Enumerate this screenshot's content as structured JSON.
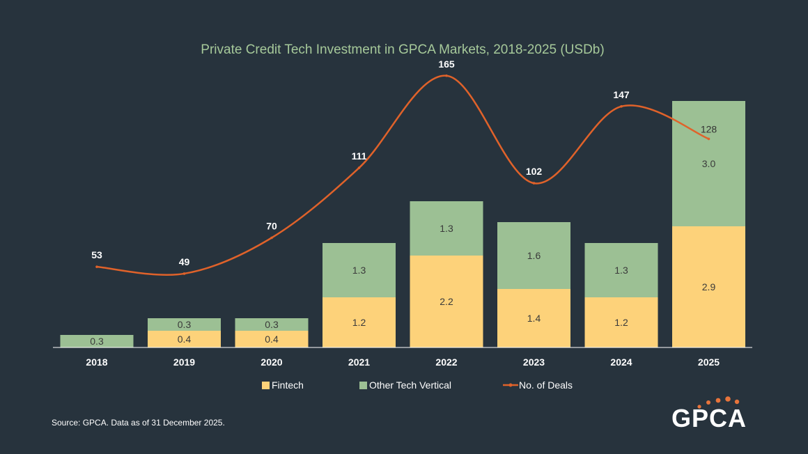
{
  "source_note": "Source: GPCA. Data as of 31 December 2025.",
  "logo": {
    "text": "GPCA",
    "dot_color": "#e8743b"
  },
  "colors": {
    "background": "#27333d",
    "fintech": "#fdd27a",
    "other": "#9cc094",
    "deals": "#e0622a",
    "title": "#a6c99a"
  },
  "chart_data": {
    "type": "bar",
    "stacked": true,
    "title": "Private Credit Tech Investment in GPCA Markets, 2018-2025 (USDb)",
    "categories": [
      "2018",
      "2019",
      "2020",
      "2021",
      "2022",
      "2023",
      "2024",
      "2025"
    ],
    "series": [
      {
        "name": "Fintech",
        "kind": "bar",
        "values": [
          null,
          0.4,
          0.4,
          1.2,
          2.2,
          1.4,
          1.2,
          2.9
        ]
      },
      {
        "name": "Other Tech Vertical",
        "kind": "bar",
        "values": [
          0.3,
          0.3,
          0.3,
          1.3,
          1.3,
          1.6,
          1.3,
          3.0
        ]
      },
      {
        "name": "No. of Deals",
        "kind": "line",
        "axis": "secondary",
        "values": [
          53,
          49,
          70,
          111,
          165,
          102,
          147,
          128
        ]
      }
    ],
    "legend": {
      "position": "bottom",
      "labels": [
        "Fintech",
        "Other Tech Vertical",
        "No. of Deals"
      ]
    },
    "grid": false
  }
}
